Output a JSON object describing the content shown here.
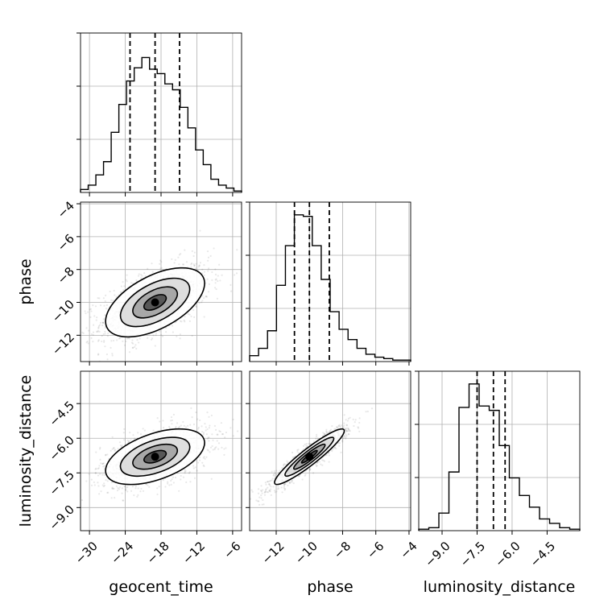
{
  "chart_data": {
    "type": "corner",
    "parameters": [
      "geocent_time",
      "phase",
      "luminosity_distance"
    ],
    "axis_labels": {
      "geocent_time": "geocent_time",
      "phase": "phase",
      "luminosity_distance": "luminosity_distance"
    },
    "ranges": {
      "geocent_time": [
        -31.5,
        -4.5
      ],
      "phase": [
        -13.6,
        -3.9
      ],
      "luminosity_distance": [
        -10.0,
        -3.1
      ]
    },
    "ticks": {
      "geocent_time": [
        -30,
        -24,
        -18,
        -12,
        -6
      ],
      "phase": [
        -12,
        -10,
        -8,
        -6,
        -4
      ],
      "luminosity_distance": [
        -9.0,
        -7.5,
        -6.0,
        -4.5
      ]
    },
    "tick_labels": {
      "geocent_time": [
        "−30",
        "−24",
        "−18",
        "−12",
        "−6"
      ],
      "phase": [
        "−12",
        "−10",
        "−8",
        "−6",
        "−4"
      ],
      "luminosity_distance": [
        "−9.0",
        "−7.5",
        "−6.0",
        "−4.5"
      ]
    },
    "quantiles": {
      "geocent_time": [
        -23.2,
        -19.0,
        -14.9
      ],
      "phase": [
        -10.9,
        -10.0,
        -8.8
      ],
      "luminosity_distance": [
        -7.5,
        -6.8,
        -6.3
      ]
    },
    "histograms": {
      "geocent_time": [
        0.02,
        0.05,
        0.12,
        0.21,
        0.41,
        0.6,
        0.76,
        0.85,
        0.92,
        0.84,
        0.81,
        0.74,
        0.7,
        0.58,
        0.44,
        0.29,
        0.19,
        0.09,
        0.05,
        0.03,
        0.01
      ],
      "phase": [
        0.04,
        0.09,
        0.21,
        0.52,
        0.79,
        1.0,
        0.99,
        0.79,
        0.56,
        0.34,
        0.22,
        0.15,
        0.09,
        0.05,
        0.03,
        0.02,
        0.01,
        0.01
      ],
      "luminosity_distance": [
        0.01,
        0.02,
        0.12,
        0.4,
        0.84,
        1.0,
        0.85,
        0.82,
        0.58,
        0.36,
        0.24,
        0.16,
        0.08,
        0.05,
        0.02,
        0.01
      ]
    },
    "correlations": {
      "phase|geocent_time": 0.55,
      "luminosity_distance|geocent_time": 0.5,
      "luminosity_distance|phase": 0.93
    }
  }
}
